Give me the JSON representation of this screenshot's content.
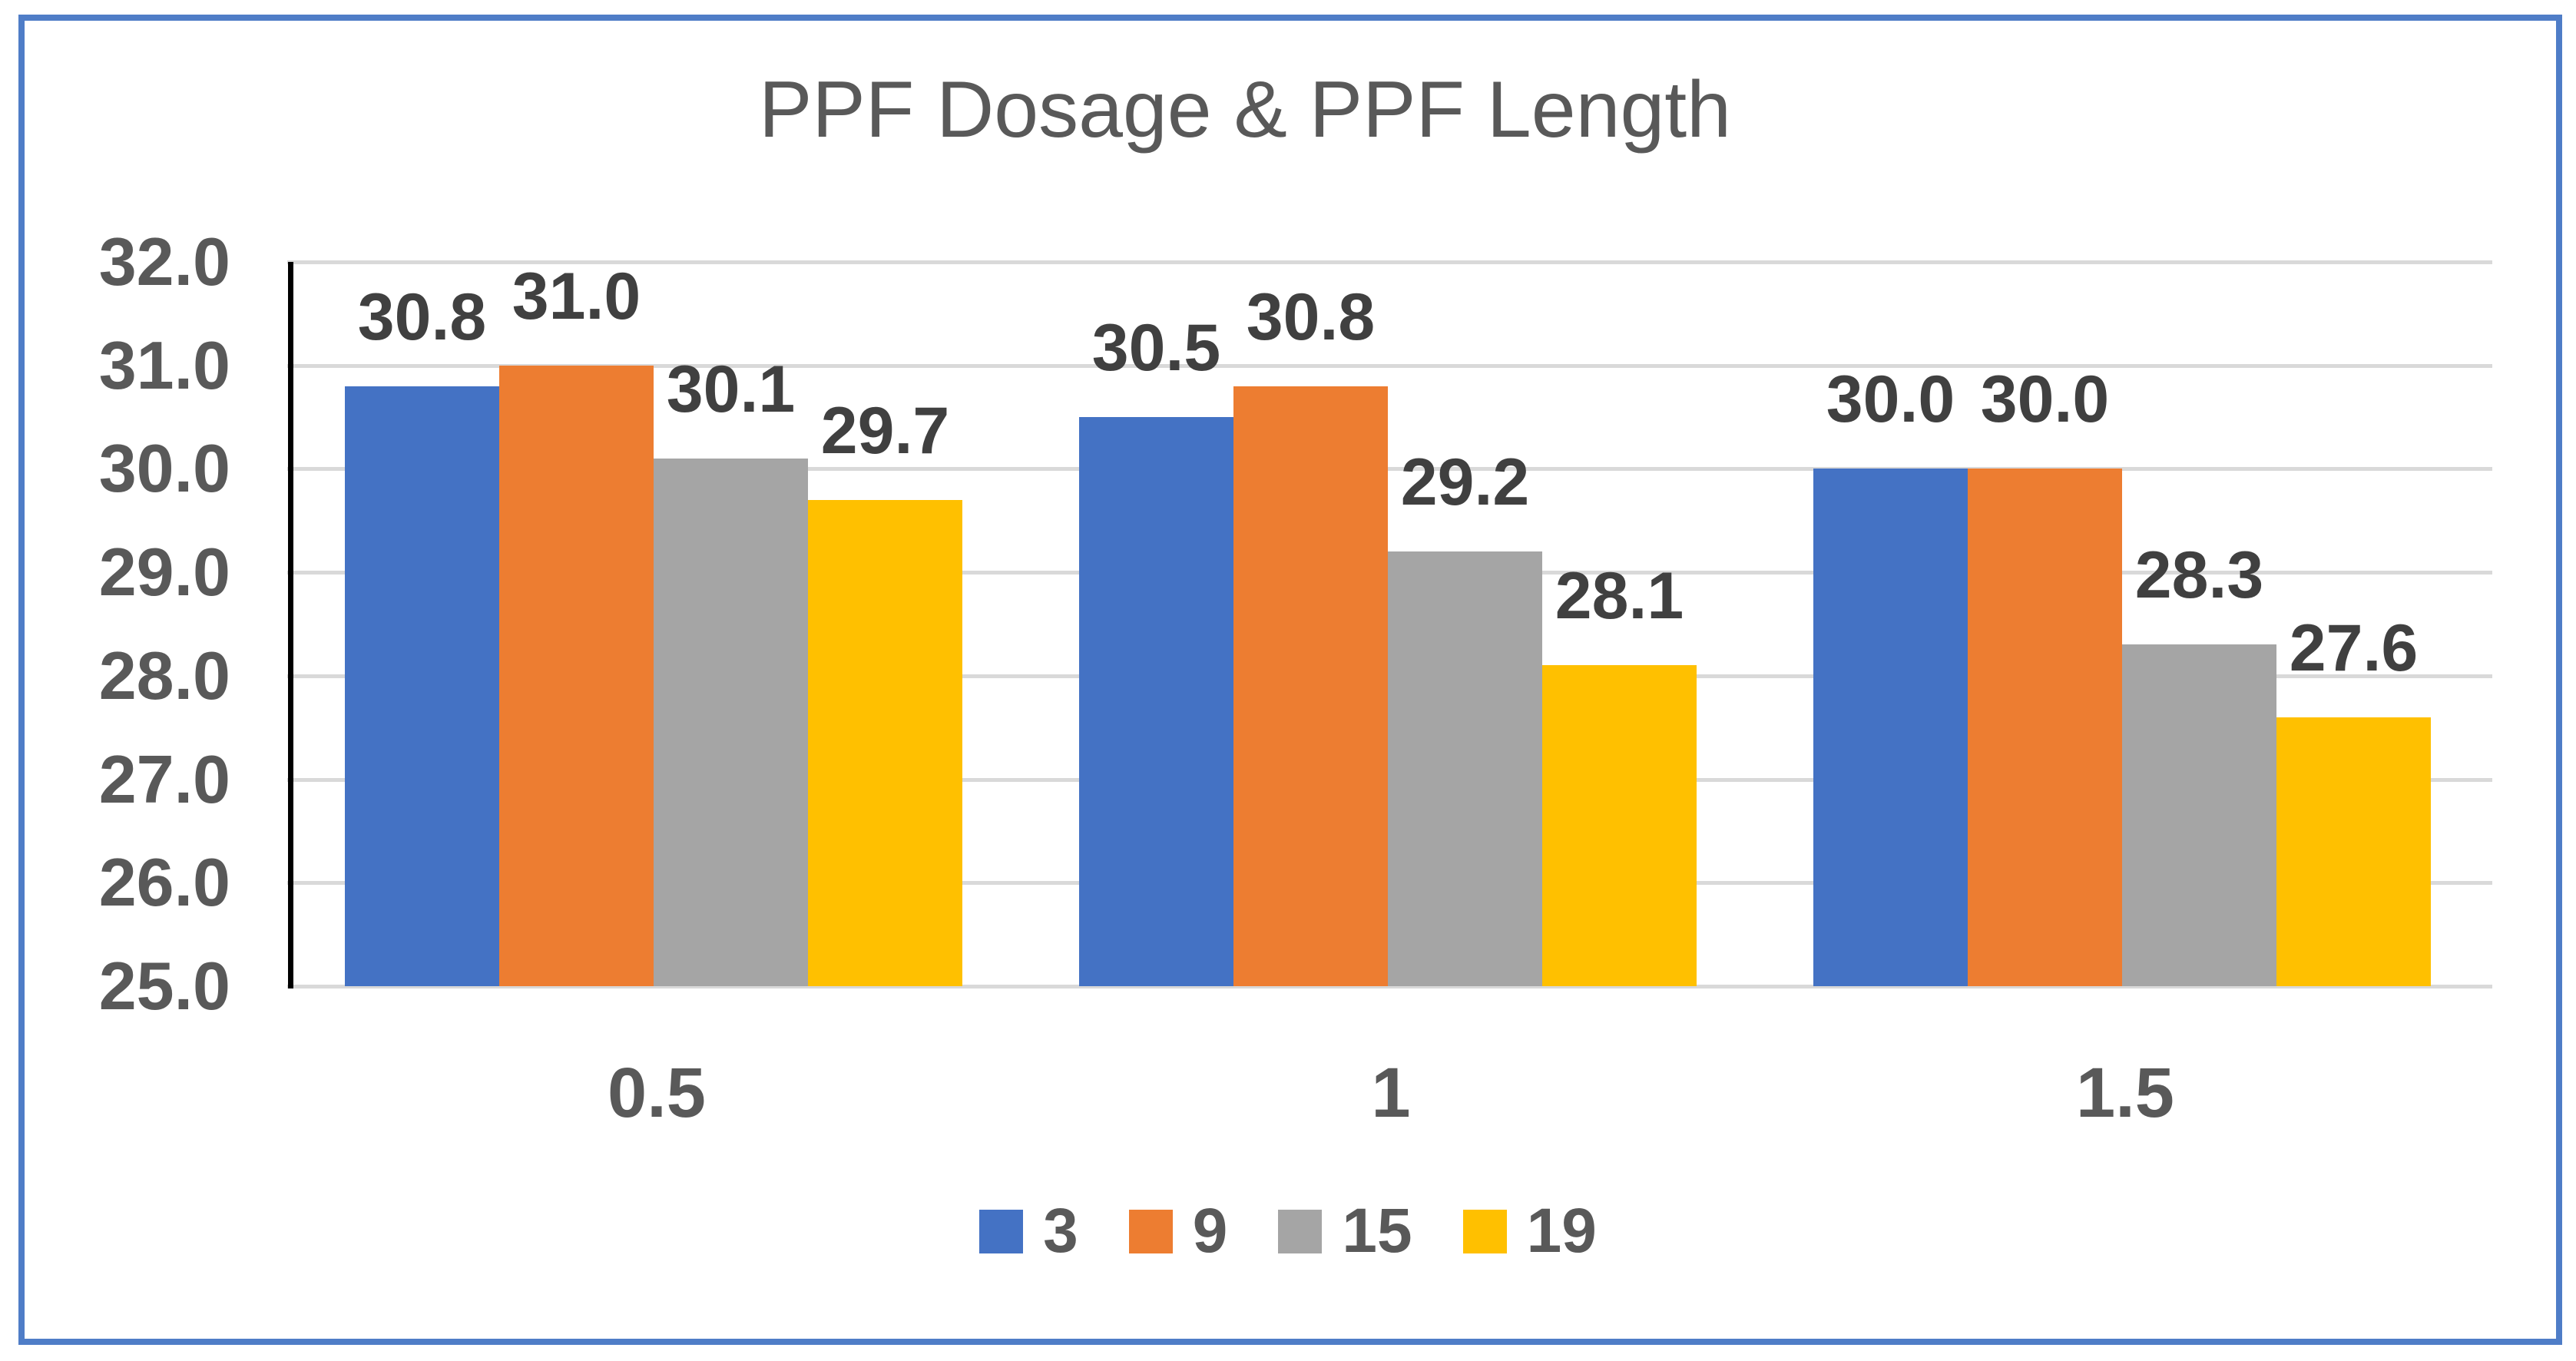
{
  "frame": {
    "border_color": "#4f7dc7",
    "background": "#ffffff"
  },
  "chart_data": {
    "type": "bar",
    "title": "PPF Dosage & PPF Length",
    "title_color": "#595959",
    "categories": [
      "0.5",
      "1",
      "1.5"
    ],
    "series": [
      {
        "name": "3",
        "color": "#4472C4",
        "values": [
          30.8,
          30.5,
          30.0
        ],
        "labels": [
          "30.8",
          "30.5",
          "30.0"
        ]
      },
      {
        "name": "9",
        "color": "#ED7D31",
        "values": [
          31.0,
          30.8,
          30.0
        ],
        "labels": [
          "31.0",
          "30.8",
          "30.0"
        ]
      },
      {
        "name": "15",
        "color": "#A5A5A5",
        "values": [
          30.1,
          29.2,
          28.3
        ],
        "labels": [
          "30.1",
          "29.2",
          "28.3"
        ]
      },
      {
        "name": "19",
        "color": "#FFC000",
        "values": [
          29.7,
          28.1,
          27.6
        ],
        "labels": [
          "29.7",
          "28.1",
          "27.6"
        ]
      }
    ],
    "xlabel": "",
    "ylabel": "",
    "ylim": [
      25.0,
      32.0
    ],
    "y_axis": {
      "min": 25,
      "max": 32,
      "ticks": [
        "32.0",
        "31.0",
        "30.0",
        "29.0",
        "28.0",
        "27.0",
        "26.0",
        "25.0"
      ],
      "tick_color": "#595959",
      "axis_line_color": "#000000"
    },
    "grid": true,
    "gridline_color": "#d9d9d9",
    "data_label_color": "#404040",
    "legend": {
      "position": "bottom",
      "entries": [
        "3",
        "9",
        "15",
        "19"
      ]
    }
  }
}
